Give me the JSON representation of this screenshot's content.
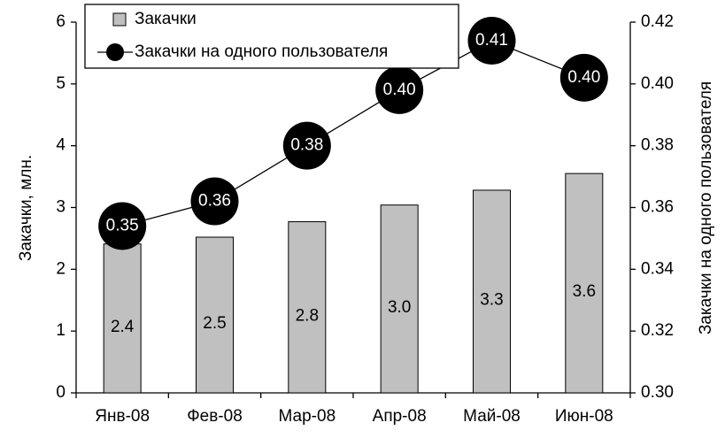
{
  "chart_data": {
    "type": "bar_line",
    "categories": [
      "Янв-08",
      "Фев-08",
      "Мар-08",
      "Апр-08",
      "Май-08",
      "Июн-08"
    ],
    "series": [
      {
        "name": "Закачки",
        "type": "bar",
        "color": "#c0c0c0",
        "values": [
          2.41,
          2.52,
          2.77,
          3.04,
          3.28,
          3.55
        ],
        "value_labels": [
          "2.4",
          "2.5",
          "2.8",
          "3.0",
          "3.3",
          "3.6"
        ]
      },
      {
        "name": "Закачки на одного пользователя",
        "type": "line",
        "axis": "y2",
        "color": "#000000",
        "values": [
          0.354,
          0.362,
          0.38,
          0.398,
          0.414,
          0.402
        ],
        "value_labels": [
          "0.35",
          "0.36",
          "0.38",
          "0.40",
          "0.41",
          "0.40"
        ]
      }
    ],
    "y_label": "Закачки, млн.",
    "y2_label": "Закачки на одного пользователя",
    "ylim": [
      0,
      6
    ],
    "yticks": [
      0,
      1,
      2,
      3,
      4,
      5,
      6
    ],
    "y2lim": [
      0.3,
      0.42
    ],
    "y2ticks": [
      {
        "value": 0.3,
        "label": "0.30"
      },
      {
        "value": 0.32,
        "label": "0.32"
      },
      {
        "value": 0.34,
        "label": "0.34"
      },
      {
        "value": 0.36,
        "label": "0.36"
      },
      {
        "value": 0.38,
        "label": "0.38"
      },
      {
        "value": 0.4,
        "label": "0.40"
      },
      {
        "value": 0.42,
        "label": "0.42"
      }
    ],
    "grid": false,
    "legend": "top"
  }
}
